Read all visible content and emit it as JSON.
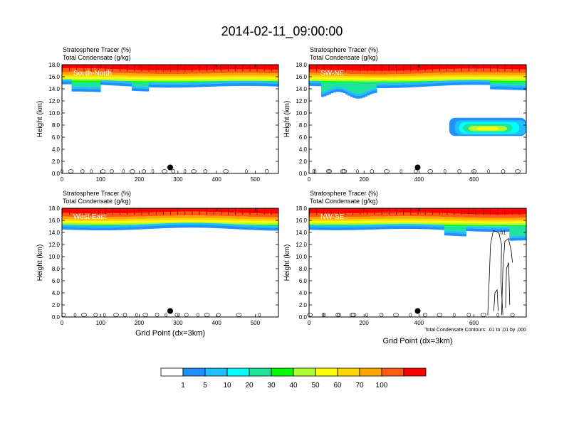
{
  "title": "2014-02-11_09:00:00",
  "colorbar": {
    "colors": [
      "#ffffff",
      "#1e90ff",
      "#1fbfff",
      "#00ffff",
      "#1ee39a",
      "#00ff00",
      "#adff2f",
      "#ffff00",
      "#ffd700",
      "#ffa500",
      "#ff5a14",
      "#ff0000"
    ],
    "labels": [
      "1",
      "5",
      "10",
      "20",
      "30",
      "40",
      "50",
      "60",
      "70",
      "100"
    ]
  },
  "chart_data": [
    {
      "type": "heatmap",
      "label": "South-North",
      "titles": [
        "Stratosphere Tracer   (%)",
        "Total Condensate   (g/kg)"
      ],
      "ylabel": "Height (km)",
      "xlabel": "",
      "xlim": [
        0,
        560
      ],
      "ylim": [
        0,
        18
      ],
      "xticks": [
        0,
        100,
        200,
        300,
        400,
        500
      ],
      "yticks": [
        "0.0",
        "2.0",
        "4.0",
        "6.0",
        "8.0",
        "10.0",
        "12.0",
        "14.0",
        "16.0",
        "18.0"
      ],
      "marker": {
        "x": 280,
        "y": 1.0
      },
      "footnote": ""
    },
    {
      "type": "heatmap",
      "label": "SW-NE",
      "titles": [
        "Stratosphere Tracer   (%)",
        "Total Condensate   (g/kg)"
      ],
      "ylabel": "Height (km)",
      "xlabel": "",
      "xlim": [
        0,
        790
      ],
      "ylim": [
        0,
        18
      ],
      "xticks": [
        0,
        200,
        400,
        600
      ],
      "yticks": [
        "0.0",
        "2.0",
        "4.0",
        "6.0",
        "8.0",
        "10.0",
        "12.0",
        "14.0",
        "16.0",
        "18.0"
      ],
      "marker": {
        "x": 395,
        "y": 1.0
      },
      "footnote": ""
    },
    {
      "type": "heatmap",
      "label": "West-East",
      "titles": [
        "Stratosphere Tracer   (%)",
        "Total Condensate   (g/kg)"
      ],
      "ylabel": "Height (km)",
      "xlabel": "Grid Point (dx=3km)",
      "xlim": [
        0,
        560
      ],
      "ylim": [
        0,
        18
      ],
      "xticks": [
        0,
        100,
        200,
        300,
        400,
        500
      ],
      "yticks": [
        "0.0",
        "2.0",
        "4.0",
        "6.0",
        "8.0",
        "10.0",
        "12.0",
        "14.0",
        "16.0",
        "18.0"
      ],
      "marker": {
        "x": 280,
        "y": 1.0
      },
      "footnote": ""
    },
    {
      "type": "heatmap",
      "label": "NW-SE",
      "titles": [
        "Stratosphere Tracer   (%)",
        "Total Condensate   (g/kg)"
      ],
      "ylabel": "Height (km)",
      "xlabel": "Grid Point (dx=3km)",
      "xlim": [
        0,
        790
      ],
      "ylim": [
        0,
        18
      ],
      "xticks": [
        0,
        200,
        400,
        600
      ],
      "yticks": [
        "0.0",
        "2.0",
        "4.0",
        "6.0",
        "8.0",
        "10.0",
        "12.0",
        "14.0",
        "16.0",
        "18.0"
      ],
      "marker": {
        "x": 395,
        "y": 1.0
      },
      "contour_label": ".01",
      "footnote": "Total Condensate Contours: .01 to .01 by .000"
    }
  ]
}
